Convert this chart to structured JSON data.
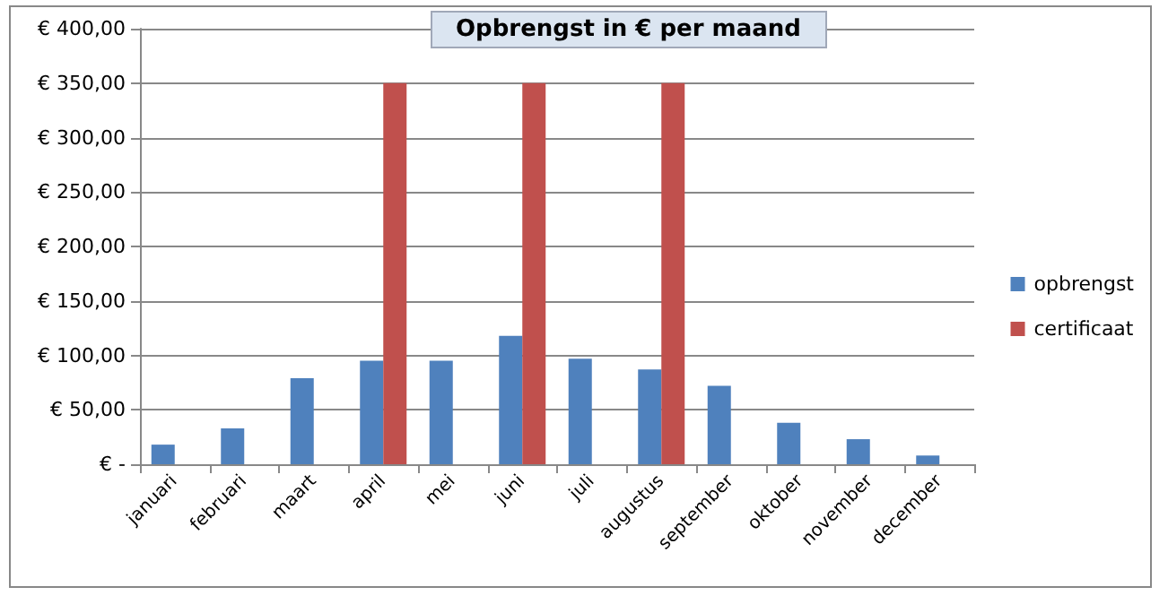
{
  "chart_data": {
    "type": "bar",
    "title": "Opbrengst in € per maand",
    "categories": [
      "januari",
      "februari",
      "maart",
      "april",
      "mei",
      "juni",
      "juli",
      "augustus",
      "september",
      "oktober",
      "november",
      "december"
    ],
    "series": [
      {
        "name": "opbrengst",
        "color": "#4f81bd",
        "values": [
          18,
          33,
          79,
          95,
          95,
          118,
          97,
          87,
          72,
          38,
          23,
          8
        ]
      },
      {
        "name": "certificaat",
        "color": "#c0504d",
        "values": [
          null,
          null,
          null,
          350,
          null,
          350,
          null,
          350,
          null,
          null,
          null,
          null
        ]
      }
    ],
    "ylim": [
      0,
      400
    ],
    "yticks": [
      {
        "value": 0,
        "label": "€ -"
      },
      {
        "value": 50,
        "label": "€ 50,00"
      },
      {
        "value": 100,
        "label": "€ 100,00"
      },
      {
        "value": 150,
        "label": "€ 150,00"
      },
      {
        "value": 200,
        "label": "€ 200,00"
      },
      {
        "value": 250,
        "label": "€ 250,00"
      },
      {
        "value": 300,
        "label": "€ 300,00"
      },
      {
        "value": 350,
        "label": "€ 350,00"
      },
      {
        "value": 400,
        "label": "€ 400,00"
      }
    ],
    "grid": "y",
    "legend": "right"
  }
}
